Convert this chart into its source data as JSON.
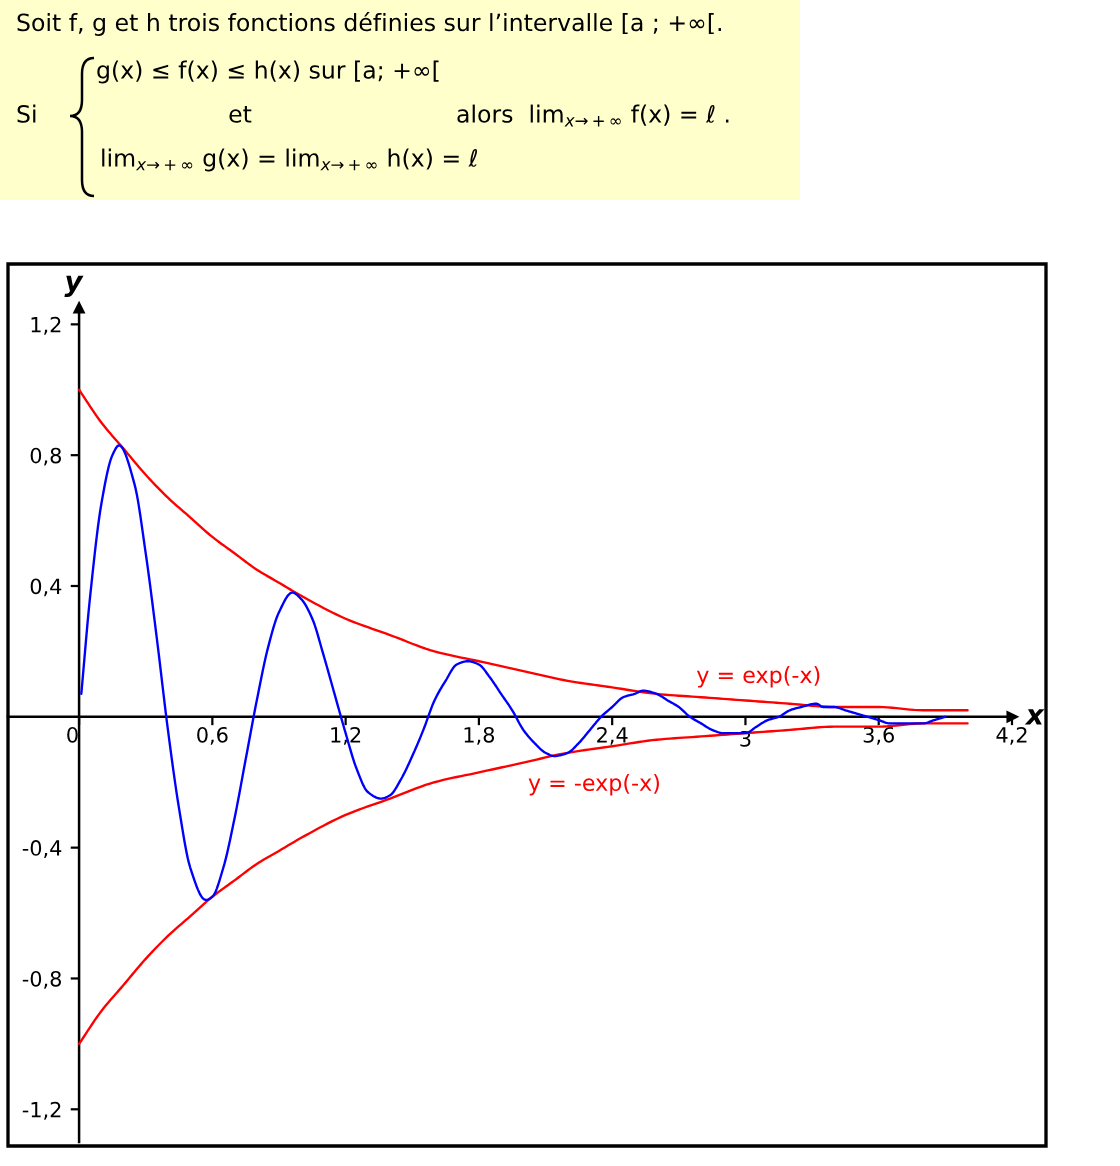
{
  "chart_data": {
    "type": "line",
    "title": "Soit f, g et h trois fonctions définies sur l’intervalle [a ; +∞[.",
    "annotations": [
      "Si",
      "g(x) ≤ f(x) ≤ h(x) sur [a; +∞[",
      "et",
      "lim$_{x→+∞}$ g(x) = lim$_{x→+∞}$ h(x) = ℓ",
      "alors  lim$_{x→+∞}$ f(x) = ℓ ."
    ],
    "xlabel": "x",
    "ylabel": "y",
    "xlim": [
      -0.32,
      4.2
    ],
    "ylim": [
      -1.3,
      1.25
    ],
    "xticks": [
      0,
      {
        "value": 0.6,
        "label": "0,6"
      },
      {
        "value": 1.2,
        "label": "1,2"
      },
      {
        "value": 1.8,
        "label": "1,8"
      },
      {
        "value": 2.4,
        "label": "2,4"
      },
      3,
      {
        "value": 3.6,
        "label": "3,6"
      },
      {
        "value": 4.2,
        "label": "4,2"
      }
    ],
    "yticks": [
      {
        "value": -1.2,
        "label": "-1,2"
      },
      {
        "value": -0.8,
        "label": "-0,8"
      },
      {
        "value": -0.4,
        "label": "-0,4"
      },
      {
        "value": 0.4,
        "label": "0,4"
      },
      {
        "value": 0.8,
        "label": "0,8"
      },
      {
        "value": 1.2,
        "label": "1,2"
      }
    ],
    "series": [
      {
        "name": "y = exp(-x)",
        "color": "#ff0000",
        "x": [
          0,
          0.1,
          0.2,
          0.3,
          0.4,
          0.5,
          0.6,
          0.7,
          0.8,
          0.9,
          1.0,
          1.2,
          1.4,
          1.6,
          1.8,
          2.0,
          2.2,
          2.4,
          2.6,
          2.8,
          3.0,
          3.2,
          3.4,
          3.6,
          3.8,
          4.0
        ],
        "values": [
          1.0,
          0.9,
          0.82,
          0.74,
          0.67,
          0.61,
          0.55,
          0.5,
          0.45,
          0.41,
          0.37,
          0.3,
          0.25,
          0.2,
          0.17,
          0.14,
          0.11,
          0.09,
          0.07,
          0.06,
          0.05,
          0.04,
          0.03,
          0.03,
          0.02,
          0.02
        ]
      },
      {
        "name": "y = -exp(-x)",
        "color": "#ff0000",
        "x": [
          0,
          0.1,
          0.2,
          0.3,
          0.4,
          0.5,
          0.6,
          0.7,
          0.8,
          0.9,
          1.0,
          1.2,
          1.4,
          1.6,
          1.8,
          2.0,
          2.2,
          2.4,
          2.6,
          2.8,
          3.0,
          3.2,
          3.4,
          3.6,
          3.8,
          4.0
        ],
        "values": [
          -1.0,
          -0.9,
          -0.82,
          -0.74,
          -0.67,
          -0.61,
          -0.55,
          -0.5,
          -0.45,
          -0.41,
          -0.37,
          -0.3,
          -0.25,
          -0.2,
          -0.17,
          -0.14,
          -0.11,
          -0.09,
          -0.07,
          -0.06,
          -0.05,
          -0.04,
          -0.03,
          -0.03,
          -0.02,
          -0.02
        ]
      },
      {
        "color": "#0000ff",
        "x": [
          0.01,
          0.05,
          0.1,
          0.15,
          0.18,
          0.25,
          0.3,
          0.35,
          0.4,
          0.45,
          0.5,
          0.57,
          0.6,
          0.65,
          0.7,
          0.75,
          0.8,
          0.85,
          0.9,
          0.96,
          1,
          1.05,
          1.1,
          1.15,
          1.2,
          1.25,
          1.3,
          1.36,
          1.4,
          1.45,
          1.5,
          1.55,
          1.6,
          1.65,
          1.7,
          1.75,
          1.8,
          1.85,
          1.9,
          1.95,
          2,
          2.05,
          2.1,
          2.14,
          2.2,
          2.25,
          2.3,
          2.35,
          2.4,
          2.45,
          2.5,
          2.54,
          2.6,
          2.65,
          2.7,
          2.75,
          2.8,
          2.85,
          2.9,
          2.93,
          3,
          3.05,
          3.1,
          3.15,
          3.2,
          3.25,
          3.32,
          3.35,
          3.4,
          3.45,
          3.5,
          3.55,
          3.6,
          3.65,
          3.71,
          3.75,
          3.8,
          3.85,
          3.9
        ],
        "values": [
          0.07,
          0.37,
          0.65,
          0.8,
          0.83,
          0.71,
          0.5,
          0.24,
          -0.04,
          -0.28,
          -0.46,
          -0.56,
          -0.55,
          -0.46,
          -0.31,
          -0.13,
          0.05,
          0.21,
          0.32,
          0.38,
          0.36,
          0.3,
          0.19,
          0.07,
          -0.05,
          -0.16,
          -0.23,
          -0.25,
          -0.24,
          -0.19,
          -0.12,
          -0.04,
          0.05,
          0.11,
          0.16,
          0.17,
          0.16,
          0.12,
          0.07,
          0.02,
          -0.04,
          -0.08,
          -0.11,
          -0.12,
          -0.11,
          -0.08,
          -0.04,
          0,
          0.03,
          0.06,
          0.07,
          0.08,
          0.07,
          0.05,
          0.03,
          0,
          -0.02,
          -0.04,
          -0.05,
          -0.05,
          -0.05,
          -0.03,
          -0.01,
          0,
          0.02,
          0.03,
          0.04,
          0.03,
          0.03,
          0.02,
          0.01,
          0,
          -0.01,
          -0.02,
          -0.02,
          -0.02,
          -0.02,
          -0.01,
          0
        ]
      }
    ]
  }
}
